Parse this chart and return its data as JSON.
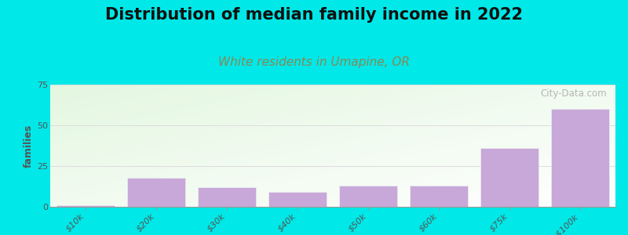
{
  "title": "Distribution of median family income in 2022",
  "subtitle": "White residents in Umapine, OR",
  "categories": [
    "$10k",
    "$20k",
    "$30k",
    "$40k",
    "$50k",
    "$60k",
    "$75k",
    ">$100k"
  ],
  "values": [
    1,
    18,
    12,
    9,
    13,
    13,
    36,
    60
  ],
  "bar_color": "#c8a8d8",
  "bar_edge_color": "#e8e8f0",
  "background_outer": "#00e8e8",
  "background_inner_topleft": "#c0e0b0",
  "background_inner_bottomright": "#f8f8f8",
  "ylabel": "families",
  "ylim": [
    0,
    75
  ],
  "yticks": [
    0,
    25,
    50,
    75
  ],
  "title_fontsize": 15,
  "subtitle_fontsize": 11,
  "subtitle_color": "#888855",
  "watermark_text": "City-Data.com",
  "watermark_color": "#aaaaaa",
  "grid_color": "#dddddd",
  "tick_label_color": "#555555",
  "ylabel_color": "#555555",
  "title_color": "#111111"
}
